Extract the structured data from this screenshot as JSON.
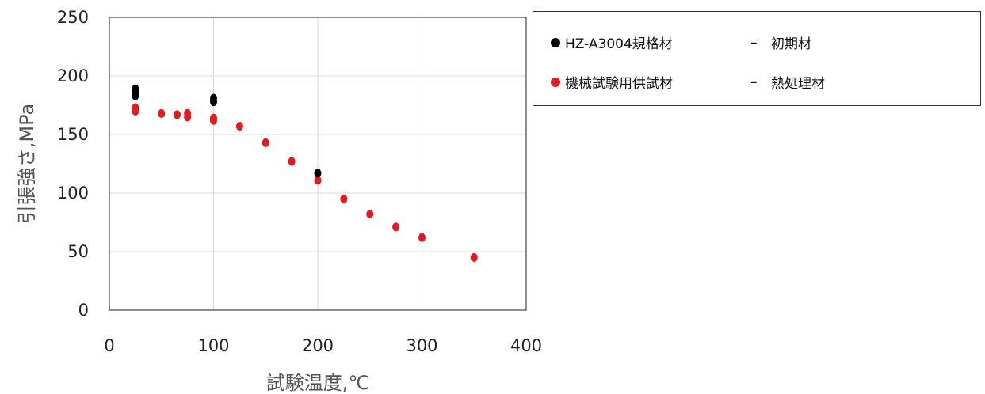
{
  "chart_data": {
    "type": "scatter",
    "xlabel": "試験温度,℃",
    "ylabel": "引張強さ,MPa",
    "xlim": [
      0,
      400
    ],
    "ylim": [
      0,
      250
    ],
    "xticks": [
      "0",
      "100",
      "200",
      "300",
      "400"
    ],
    "yticks": [
      "0",
      "50",
      "100",
      "150",
      "200",
      "250"
    ],
    "grid": true,
    "legend_position": "right",
    "series": [
      {
        "name": "HZ-A3004規格材",
        "condition": "初期材",
        "color": "#000000",
        "points": [
          [
            25,
            189
          ],
          [
            25,
            186
          ],
          [
            25,
            183
          ],
          [
            100,
            181
          ],
          [
            100,
            178
          ],
          [
            200,
            117
          ]
        ]
      },
      {
        "name": "機械試験用供試材",
        "condition": "熱処理材",
        "color": "#e41a1c",
        "points": [
          [
            25,
            173
          ],
          [
            25,
            170
          ],
          [
            50,
            168
          ],
          [
            65,
            167
          ],
          [
            75,
            168
          ],
          [
            75,
            165
          ],
          [
            100,
            164
          ],
          [
            100,
            162
          ],
          [
            125,
            157
          ],
          [
            150,
            143
          ],
          [
            175,
            127
          ],
          [
            200,
            111
          ],
          [
            225,
            95
          ],
          [
            250,
            82
          ],
          [
            275,
            71
          ],
          [
            300,
            62
          ],
          [
            350,
            45
          ]
        ]
      }
    ]
  }
}
